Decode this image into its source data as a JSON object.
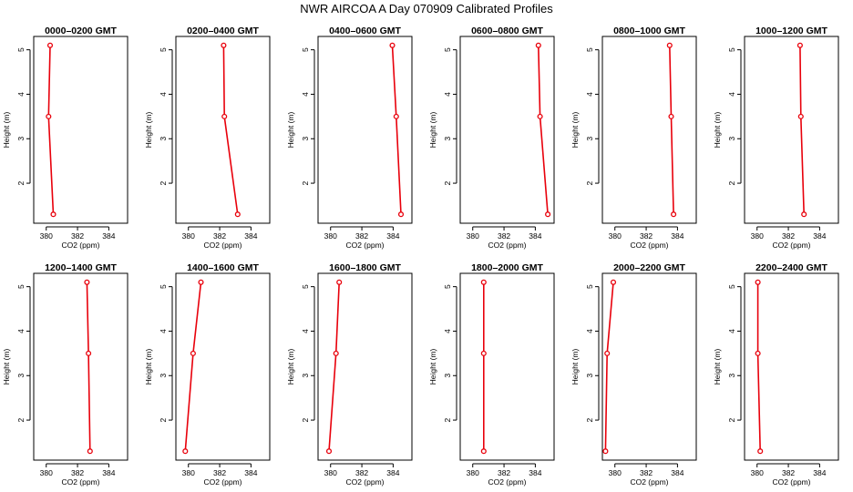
{
  "figure": {
    "title": "NWR AIRCOA A  Day 070909  Calibrated Profiles",
    "line_color": "#e8000b"
  },
  "chart_data": [
    {
      "type": "line",
      "title": "0000–0200 GMT",
      "xlabel": "CO2 (ppm)",
      "ylabel": "Height (m)",
      "xlim": [
        379.2,
        385.2
      ],
      "ylim": [
        1.1,
        5.3
      ],
      "xticks": [
        "380",
        "382",
        "384"
      ],
      "yticks": [
        "2",
        "3",
        "4",
        "5"
      ],
      "series": [
        {
          "x": [
            380.25,
            380.15,
            380.45
          ],
          "y": [
            5.1,
            3.5,
            1.3
          ]
        }
      ]
    },
    {
      "type": "line",
      "title": "0200–0400 GMT",
      "xlabel": "CO2 (ppm)",
      "ylabel": "Height (m)",
      "xlim": [
        379.2,
        385.2
      ],
      "ylim": [
        1.1,
        5.3
      ],
      "xticks": [
        "380",
        "382",
        "384"
      ],
      "yticks": [
        "2",
        "3",
        "4",
        "5"
      ],
      "series": [
        {
          "x": [
            382.25,
            382.3,
            383.15
          ],
          "y": [
            5.1,
            3.5,
            1.3
          ]
        }
      ]
    },
    {
      "type": "line",
      "title": "0400–0600 GMT",
      "xlabel": "CO2 (ppm)",
      "ylabel": "Height (m)",
      "xlim": [
        379.2,
        385.2
      ],
      "ylim": [
        1.1,
        5.3
      ],
      "xticks": [
        "380",
        "382",
        "384"
      ],
      "yticks": [
        "2",
        "3",
        "4",
        "5"
      ],
      "series": [
        {
          "x": [
            383.95,
            384.2,
            384.5
          ],
          "y": [
            5.1,
            3.5,
            1.3
          ]
        }
      ]
    },
    {
      "type": "line",
      "title": "0600–0800 GMT",
      "xlabel": "CO2 (ppm)",
      "ylabel": "Height (m)",
      "xlim": [
        379.2,
        385.2
      ],
      "ylim": [
        1.1,
        5.3
      ],
      "xticks": [
        "380",
        "382",
        "384"
      ],
      "yticks": [
        "2",
        "3",
        "4",
        "5"
      ],
      "series": [
        {
          "x": [
            384.2,
            384.3,
            384.8
          ],
          "y": [
            5.1,
            3.5,
            1.3
          ]
        }
      ]
    },
    {
      "type": "line",
      "title": "0800–1000 GMT",
      "xlabel": "CO2 (ppm)",
      "ylabel": "Height (m)",
      "xlim": [
        379.2,
        385.2
      ],
      "ylim": [
        1.1,
        5.3
      ],
      "xticks": [
        "380",
        "382",
        "384"
      ],
      "yticks": [
        "2",
        "3",
        "4",
        "5"
      ],
      "series": [
        {
          "x": [
            383.5,
            383.6,
            383.75
          ],
          "y": [
            5.1,
            3.5,
            1.3
          ]
        }
      ]
    },
    {
      "type": "line",
      "title": "1000–1200 GMT",
      "xlabel": "CO2 (ppm)",
      "ylabel": "Height (m)",
      "xlim": [
        379.2,
        385.2
      ],
      "ylim": [
        1.1,
        5.3
      ],
      "xticks": [
        "380",
        "382",
        "384"
      ],
      "yticks": [
        "2",
        "3",
        "4",
        "5"
      ],
      "series": [
        {
          "x": [
            382.75,
            382.8,
            383.0
          ],
          "y": [
            5.1,
            3.5,
            1.3
          ]
        }
      ]
    },
    {
      "type": "line",
      "title": "1200–1400 GMT",
      "xlabel": "CO2 (ppm)",
      "ylabel": "Height (m)",
      "xlim": [
        379.2,
        385.2
      ],
      "ylim": [
        1.1,
        5.3
      ],
      "xticks": [
        "380",
        "382",
        "384"
      ],
      "yticks": [
        "2",
        "3",
        "4",
        "5"
      ],
      "series": [
        {
          "x": [
            382.6,
            382.7,
            382.8
          ],
          "y": [
            5.1,
            3.5,
            1.3
          ]
        }
      ]
    },
    {
      "type": "line",
      "title": "1400–1600 GMT",
      "xlabel": "CO2 (ppm)",
      "ylabel": "Height (m)",
      "xlim": [
        379.2,
        385.2
      ],
      "ylim": [
        1.1,
        5.3
      ],
      "xticks": [
        "380",
        "382",
        "384"
      ],
      "yticks": [
        "2",
        "3",
        "4",
        "5"
      ],
      "series": [
        {
          "x": [
            380.8,
            380.3,
            379.8
          ],
          "y": [
            5.1,
            3.5,
            1.3
          ]
        }
      ]
    },
    {
      "type": "line",
      "title": "1600–1800 GMT",
      "xlabel": "CO2 (ppm)",
      "ylabel": "Height (m)",
      "xlim": [
        379.2,
        385.2
      ],
      "ylim": [
        1.1,
        5.3
      ],
      "xticks": [
        "380",
        "382",
        "384"
      ],
      "yticks": [
        "2",
        "3",
        "4",
        "5"
      ],
      "series": [
        {
          "x": [
            380.55,
            380.35,
            379.9
          ],
          "y": [
            5.1,
            3.5,
            1.3
          ]
        }
      ]
    },
    {
      "type": "line",
      "title": "1800–2000 GMT",
      "xlabel": "CO2 (ppm)",
      "ylabel": "Height (m)",
      "xlim": [
        379.2,
        385.2
      ],
      "ylim": [
        1.1,
        5.3
      ],
      "xticks": [
        "380",
        "382",
        "384"
      ],
      "yticks": [
        "2",
        "3",
        "4",
        "5"
      ],
      "series": [
        {
          "x": [
            380.7,
            380.7,
            380.7
          ],
          "y": [
            5.1,
            3.5,
            1.3
          ]
        }
      ]
    },
    {
      "type": "line",
      "title": "2000–2200 GMT",
      "xlabel": "CO2 (ppm)",
      "ylabel": "Height (m)",
      "xlim": [
        379.2,
        385.2
      ],
      "ylim": [
        1.1,
        5.3
      ],
      "xticks": [
        "380",
        "382",
        "384"
      ],
      "yticks": [
        "2",
        "3",
        "4",
        "5"
      ],
      "series": [
        {
          "x": [
            379.9,
            379.5,
            379.4
          ],
          "y": [
            5.1,
            3.5,
            1.3
          ]
        }
      ]
    },
    {
      "type": "line",
      "title": "2200–2400 GMT",
      "xlabel": "CO2 (ppm)",
      "ylabel": "Height (m)",
      "xlim": [
        379.2,
        385.2
      ],
      "ylim": [
        1.1,
        5.3
      ],
      "xticks": [
        "380",
        "382",
        "384"
      ],
      "yticks": [
        "2",
        "3",
        "4",
        "5"
      ],
      "series": [
        {
          "x": [
            380.05,
            380.05,
            380.2
          ],
          "y": [
            5.1,
            3.5,
            1.3
          ]
        }
      ]
    }
  ]
}
